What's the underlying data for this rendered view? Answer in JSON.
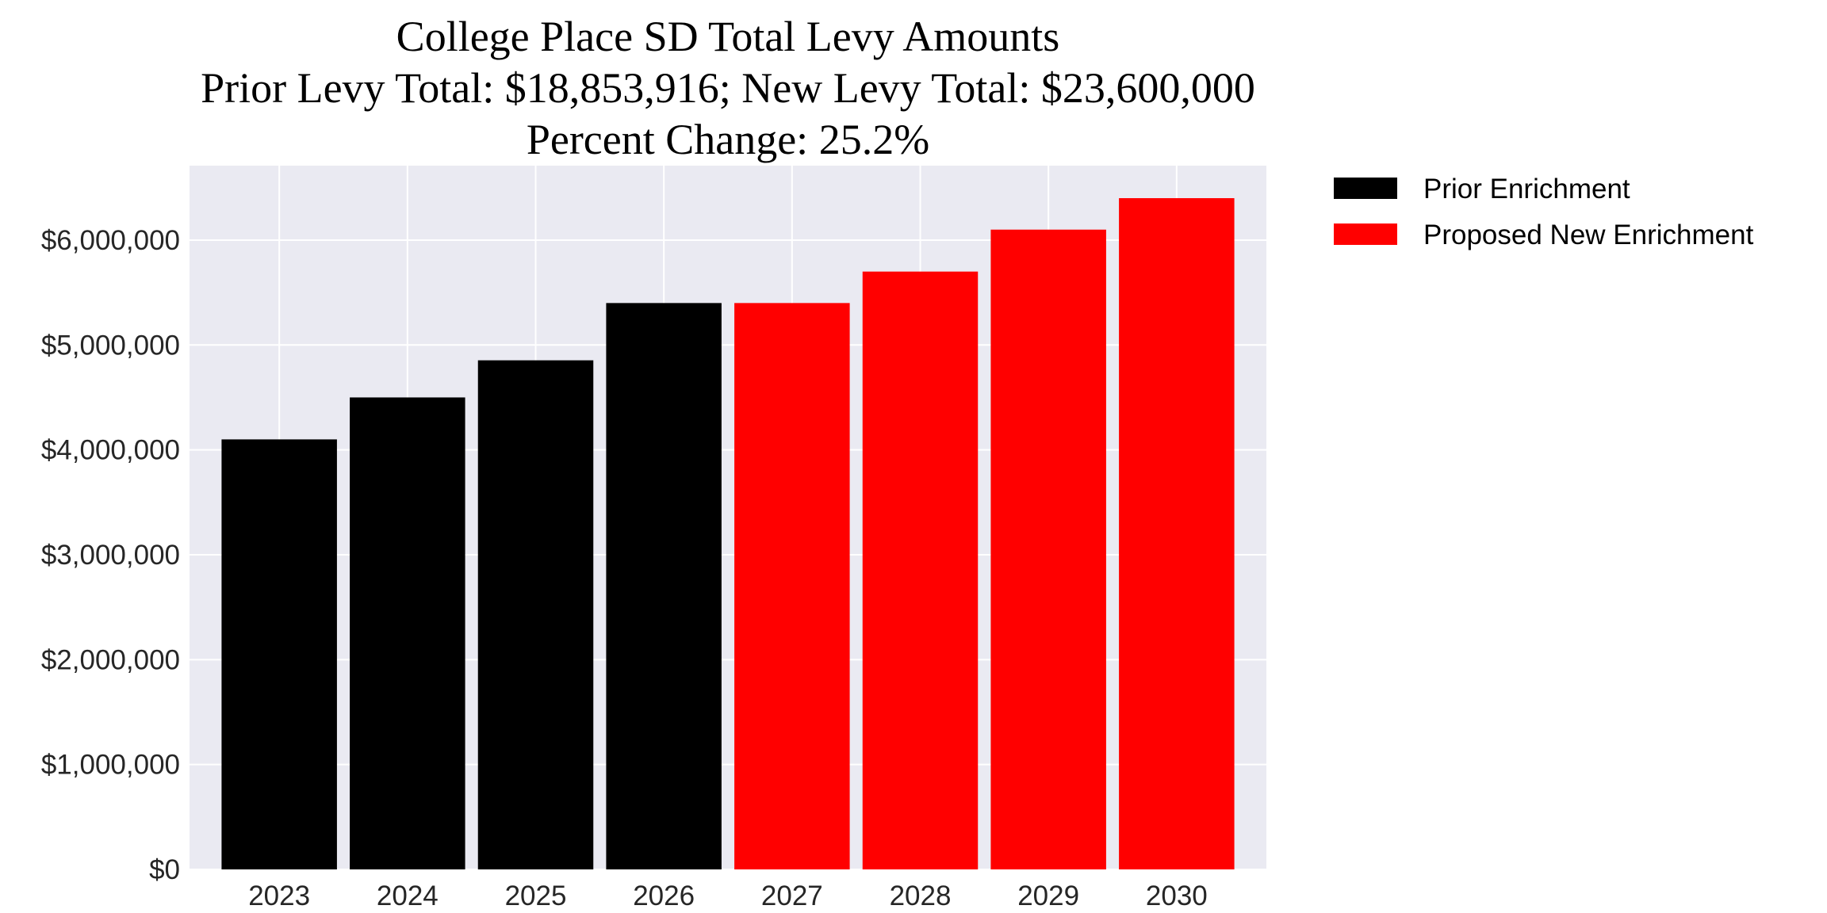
{
  "chart_data": {
    "type": "bar",
    "title_lines": [
      "College Place SD Total Levy Amounts",
      "Prior Levy Total:  $18,853,916; New Levy Total: $23,600,000",
      "Percent Change: 25.2%"
    ],
    "categories": [
      "2023",
      "2024",
      "2025",
      "2026",
      "2027",
      "2028",
      "2029",
      "2030"
    ],
    "series": [
      {
        "name": "Prior Enrichment",
        "color": "#000000",
        "values": [
          4100000,
          4500000,
          4853916,
          5400000,
          null,
          null,
          null,
          null
        ]
      },
      {
        "name": "Proposed New Enrichment",
        "color": "#ff0000",
        "values": [
          null,
          null,
          null,
          null,
          5400000,
          5700000,
          6100000,
          6400000
        ]
      }
    ],
    "xlabel": "",
    "ylabel": "",
    "ylim": [
      0,
      6710000
    ],
    "yticks": [
      0,
      1000000,
      2000000,
      3000000,
      4000000,
      5000000,
      6000000
    ],
    "ytick_labels": [
      "$0",
      "$1,000,000",
      "$2,000,000",
      "$3,000,000",
      "$4,000,000",
      "$5,000,000",
      "$6,000,000"
    ],
    "grid": true,
    "background": "#eaeaf2",
    "legend_position": "outside-right-top"
  }
}
